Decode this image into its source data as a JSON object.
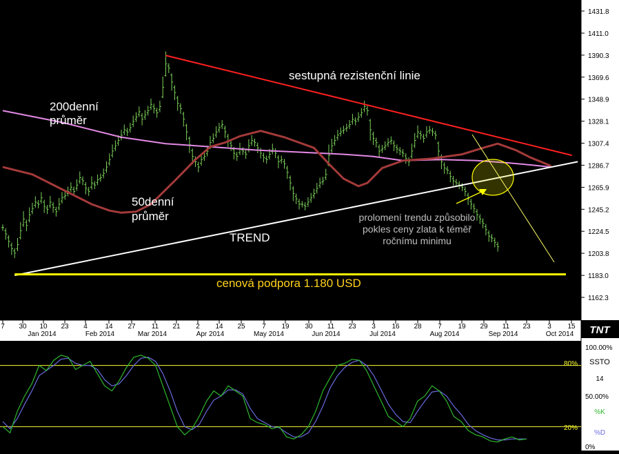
{
  "colors": {
    "background": "#000000",
    "panel_background": "#ffffff",
    "price_bars": "#7dd35a",
    "ma200": "#e58ae6",
    "ma50": "#a43a3a",
    "resistance": "#ff2020",
    "trend": "#ffffff",
    "support": "#ffff00",
    "highlight": "#ffff00",
    "percent_k": "#2eb82e",
    "percent_d": "#6a6ae0",
    "ssto_level_lines": "#ffff33",
    "annotation_text": "#bfbfbf",
    "label_text": "#ffffff",
    "support_text": "#ffd21a"
  },
  "annotations": {
    "resistance_label": "sestupná rezistenční linie",
    "ma200_label_line1": "200denní",
    "ma200_label_line2": "průměr",
    "ma50_label_line1": "50denní",
    "ma50_label_line2": "průměr",
    "trend_label": "TREND",
    "support_label": "cenová podpora 1.180 USD",
    "breakout_line1": "prolomení trendu způsobilo",
    "breakout_line2": "pokles ceny zlata k téměř",
    "breakout_line3": "ročnímu minimu"
  },
  "logo_text": "TNT",
  "ssto_panel": {
    "name": "SSTO",
    "period": "14",
    "k_label": "%K",
    "d_label": "%D",
    "level_80": "80%",
    "level_20": "20%",
    "ticks": [
      "100.00%",
      "50.00%",
      "0%"
    ]
  },
  "chart_data": [
    {
      "type": "ohlc",
      "y_ticks": [
        "1431.8",
        "1411.0",
        "1390.3",
        "1369.6",
        "1348.9",
        "1328.1",
        "1307.4",
        "1286.7",
        "1265.9",
        "1245.2",
        "1224.5",
        "1203.8",
        "1183.0",
        "1162.3"
      ],
      "y_tick_values": [
        1431.8,
        1411.0,
        1390.3,
        1369.6,
        1348.9,
        1328.1,
        1307.4,
        1286.7,
        1265.9,
        1245.2,
        1224.5,
        1203.8,
        1183.0,
        1162.3
      ],
      "ylim": [
        1152,
        1440
      ],
      "x_day_ticks": [
        "7",
        "30",
        "10",
        "23",
        "4",
        "14",
        "27",
        "11",
        "21",
        "2",
        "14",
        "25",
        "7",
        "19",
        "30",
        "11",
        "23",
        "3",
        "16",
        "28",
        "7",
        "19",
        "29",
        "11",
        "23",
        "3",
        "15"
      ],
      "x_months": [
        "Jan 2014",
        "Feb 2014",
        "Mar 2014",
        "Apr 2014",
        "May 2014",
        "Jun 2014",
        "Jul 2014",
        "Aug 2014",
        "Sep 2014",
        "Oct 2014"
      ],
      "series": [
        {
          "name": "200denní průměr",
          "points": [
            [
              0,
              1338
            ],
            [
              20,
              1327
            ],
            [
              40,
              1313
            ],
            [
              55,
              1307
            ],
            [
              70,
              1304
            ],
            [
              85,
              1301
            ],
            [
              100,
              1299
            ],
            [
              115,
              1297
            ],
            [
              125,
              1295
            ],
            [
              135,
              1291
            ],
            [
              148,
              1292
            ],
            [
              160,
              1291
            ],
            [
              170,
              1289
            ],
            [
              178,
              1287
            ],
            [
              185,
              1285
            ]
          ]
        },
        {
          "name": "50denní průměr",
          "points": [
            [
              0,
              1285
            ],
            [
              10,
              1278
            ],
            [
              20,
              1264
            ],
            [
              30,
              1250
            ],
            [
              36,
              1244
            ],
            [
              40,
              1242
            ],
            [
              45,
              1243
            ],
            [
              50,
              1250
            ],
            [
              58,
              1272
            ],
            [
              65,
              1292
            ],
            [
              70,
              1304
            ],
            [
              75,
              1308
            ],
            [
              80,
              1314
            ],
            [
              87,
              1319
            ],
            [
              95,
              1313
            ],
            [
              105,
              1303
            ],
            [
              110,
              1288
            ],
            [
              115,
              1274
            ],
            [
              120,
              1267
            ],
            [
              123,
              1270
            ],
            [
              128,
              1284
            ],
            [
              135,
              1291
            ],
            [
              145,
              1293
            ],
            [
              155,
              1297
            ],
            [
              162,
              1303
            ],
            [
              167,
              1307
            ],
            [
              173,
              1301
            ],
            [
              178,
              1294
            ],
            [
              185,
              1286
            ]
          ]
        }
      ],
      "lines": {
        "sestupná rezistenční linie": [
          [
            55,
            1390
          ],
          [
            192,
            1296
          ]
        ],
        "TREND": [
          [
            4,
            1183
          ],
          [
            194,
            1290
          ]
        ],
        "cenová podpora 1.180 USD": [
          [
            4,
            1184
          ],
          [
            190,
            1184
          ]
        ]
      },
      "bars_approx": [
        [
          0,
          1228
        ],
        [
          1,
          1222
        ],
        [
          2,
          1215
        ],
        [
          3,
          1208
        ],
        [
          4,
          1204
        ],
        [
          5,
          1212
        ],
        [
          6,
          1225
        ],
        [
          7,
          1236
        ],
        [
          8,
          1230
        ],
        [
          9,
          1240
        ],
        [
          10,
          1246
        ],
        [
          11,
          1252
        ],
        [
          12,
          1250
        ],
        [
          13,
          1256
        ],
        [
          14,
          1248
        ],
        [
          15,
          1245
        ],
        [
          16,
          1252
        ],
        [
          17,
          1247
        ],
        [
          18,
          1243
        ],
        [
          19,
          1250
        ],
        [
          20,
          1256
        ],
        [
          21,
          1258
        ],
        [
          22,
          1262
        ],
        [
          23,
          1266
        ],
        [
          24,
          1262
        ],
        [
          25,
          1268
        ],
        [
          26,
          1275
        ],
        [
          27,
          1272
        ],
        [
          28,
          1265
        ],
        [
          29,
          1262
        ],
        [
          30,
          1270
        ],
        [
          31,
          1268
        ],
        [
          32,
          1273
        ],
        [
          33,
          1275
        ],
        [
          34,
          1279
        ],
        [
          35,
          1285
        ],
        [
          36,
          1292
        ],
        [
          37,
          1300
        ],
        [
          38,
          1305
        ],
        [
          39,
          1310
        ],
        [
          40,
          1315
        ],
        [
          41,
          1320
        ],
        [
          42,
          1318
        ],
        [
          43,
          1322
        ],
        [
          44,
          1328
        ],
        [
          45,
          1332
        ],
        [
          46,
          1337
        ],
        [
          47,
          1330
        ],
        [
          48,
          1334
        ],
        [
          49,
          1338
        ],
        [
          50,
          1344
        ],
        [
          51,
          1340
        ],
        [
          52,
          1336
        ],
        [
          53,
          1342
        ],
        [
          54,
          1360
        ],
        [
          55,
          1382
        ],
        [
          56,
          1378
        ],
        [
          57,
          1365
        ],
        [
          58,
          1355
        ],
        [
          59,
          1345
        ],
        [
          60,
          1340
        ],
        [
          61,
          1330
        ],
        [
          62,
          1318
        ],
        [
          63,
          1306
        ],
        [
          64,
          1295
        ],
        [
          65,
          1290
        ],
        [
          66,
          1285
        ],
        [
          67,
          1292
        ],
        [
          68,
          1295
        ],
        [
          69,
          1300
        ],
        [
          70,
          1308
        ],
        [
          71,
          1312
        ],
        [
          72,
          1318
        ],
        [
          73,
          1322
        ],
        [
          74,
          1325
        ],
        [
          75,
          1318
        ],
        [
          76,
          1310
        ],
        [
          77,
          1305
        ],
        [
          78,
          1298
        ],
        [
          79,
          1295
        ],
        [
          80,
          1302
        ],
        [
          81,
          1300
        ],
        [
          82,
          1297
        ],
        [
          83,
          1305
        ],
        [
          84,
          1310
        ],
        [
          85,
          1308
        ],
        [
          86,
          1303
        ],
        [
          87,
          1298
        ],
        [
          88,
          1294
        ],
        [
          89,
          1292
        ],
        [
          90,
          1297
        ],
        [
          91,
          1302
        ],
        [
          92,
          1298
        ],
        [
          93,
          1290
        ],
        [
          94,
          1292
        ],
        [
          95,
          1288
        ],
        [
          96,
          1280
        ],
        [
          97,
          1270
        ],
        [
          98,
          1260
        ],
        [
          99,
          1255
        ],
        [
          100,
          1250
        ],
        [
          101,
          1250
        ],
        [
          102,
          1248
        ],
        [
          103,
          1252
        ],
        [
          104,
          1256
        ],
        [
          105,
          1260
        ],
        [
          106,
          1265
        ],
        [
          107,
          1270
        ],
        [
          108,
          1272
        ],
        [
          109,
          1278
        ],
        [
          110,
          1296
        ],
        [
          111,
          1305
        ],
        [
          112,
          1310
        ],
        [
          113,
          1315
        ],
        [
          114,
          1318
        ],
        [
          115,
          1320
        ],
        [
          116,
          1322
        ],
        [
          117,
          1325
        ],
        [
          118,
          1330
        ],
        [
          119,
          1328
        ],
        [
          120,
          1332
        ],
        [
          121,
          1336
        ],
        [
          122,
          1342
        ],
        [
          123,
          1338
        ],
        [
          124,
          1320
        ],
        [
          125,
          1312
        ],
        [
          126,
          1308
        ],
        [
          127,
          1300
        ],
        [
          128,
          1302
        ],
        [
          129,
          1305
        ],
        [
          130,
          1308
        ],
        [
          131,
          1310
        ],
        [
          132,
          1305
        ],
        [
          133,
          1302
        ],
        [
          134,
          1300
        ],
        [
          135,
          1298
        ],
        [
          136,
          1293
        ],
        [
          137,
          1290
        ],
        [
          138,
          1300
        ],
        [
          139,
          1310
        ],
        [
          140,
          1318
        ],
        [
          141,
          1315
        ],
        [
          142,
          1312
        ],
        [
          143,
          1318
        ],
        [
          144,
          1320
        ],
        [
          145,
          1318
        ],
        [
          146,
          1315
        ],
        [
          147,
          1300
        ],
        [
          148,
          1290
        ],
        [
          149,
          1284
        ],
        [
          150,
          1282
        ],
        [
          151,
          1276
        ],
        [
          152,
          1272
        ],
        [
          153,
          1270
        ],
        [
          154,
          1268
        ],
        [
          155,
          1266
        ],
        [
          156,
          1262
        ],
        [
          157,
          1255
        ],
        [
          158,
          1250
        ],
        [
          159,
          1246
        ],
        [
          160,
          1240
        ],
        [
          161,
          1236
        ],
        [
          162,
          1232
        ],
        [
          163,
          1226
        ],
        [
          164,
          1220
        ],
        [
          165,
          1218
        ],
        [
          166,
          1214
        ],
        [
          167,
          1210
        ]
      ]
    },
    {
      "type": "line",
      "title": "SSTO",
      "ylim": [
        0,
        100
      ],
      "levels": [
        20,
        80
      ],
      "series": [
        {
          "name": "%K",
          "values": [
            20,
            14,
            35,
            50,
            62,
            80,
            75,
            85,
            90,
            88,
            76,
            80,
            84,
            72,
            60,
            55,
            65,
            78,
            88,
            90,
            87,
            80,
            60,
            40,
            20,
            12,
            18,
            30,
            45,
            55,
            50,
            60,
            55,
            50,
            28,
            24,
            22,
            18,
            20,
            10,
            8,
            12,
            20,
            35,
            55,
            68,
            80,
            82,
            86,
            85,
            75,
            60,
            45,
            30,
            25,
            20,
            28,
            45,
            50,
            60,
            55,
            45,
            30,
            25,
            16,
            12,
            10,
            6,
            5,
            8,
            10,
            7,
            8
          ]
        },
        {
          "name": "%D",
          "values": [
            25,
            18,
            28,
            42,
            55,
            70,
            75,
            80,
            86,
            87,
            82,
            80,
            80,
            76,
            66,
            60,
            62,
            70,
            80,
            87,
            88,
            84,
            72,
            55,
            35,
            20,
            17,
            22,
            35,
            46,
            50,
            56,
            56,
            52,
            38,
            28,
            24,
            20,
            19,
            14,
            10,
            10,
            14,
            25,
            40,
            58,
            70,
            78,
            83,
            85,
            80,
            70,
            56,
            42,
            32,
            25,
            24,
            35,
            45,
            54,
            55,
            50,
            40,
            32,
            22,
            16,
            12,
            9,
            7,
            7,
            8,
            8,
            8
          ]
        }
      ]
    }
  ]
}
